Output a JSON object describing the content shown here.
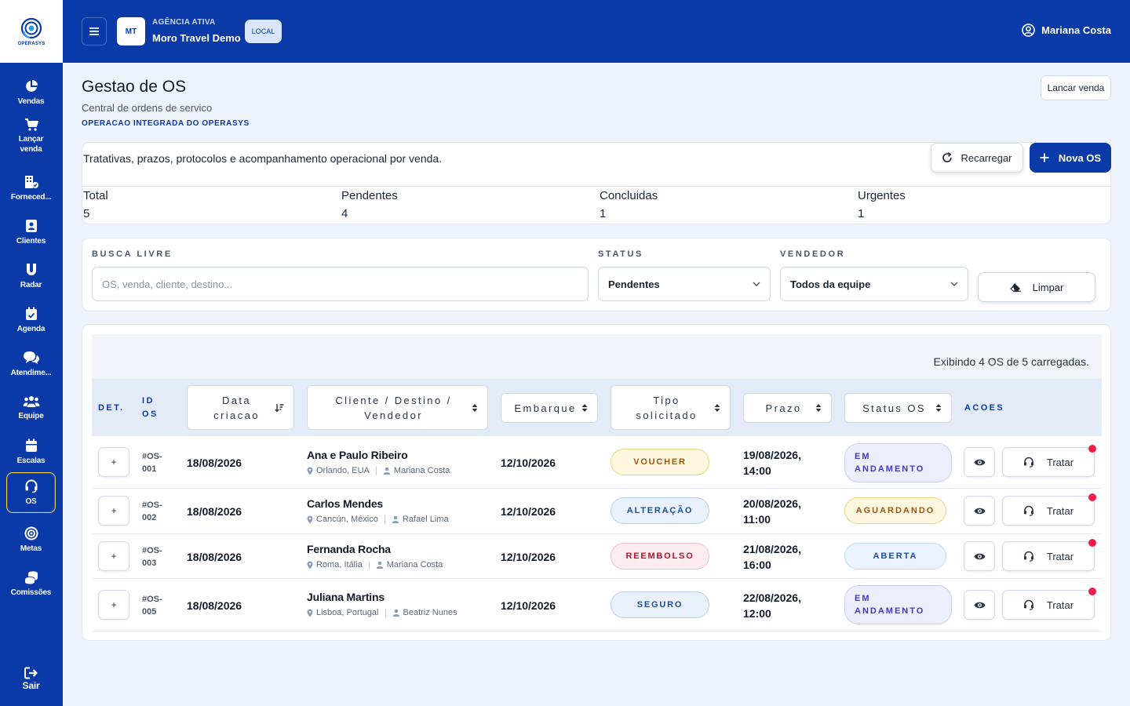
{
  "app": {
    "logo_text": "OPERASYS"
  },
  "colors": {
    "primary": "#0a3aa7",
    "active_border": "#f2c94c",
    "alert_dot": "#ef1e4a"
  },
  "sidebar": {
    "items": [
      {
        "label": "Vendas",
        "icon": "pie-chart-icon"
      },
      {
        "label": "Lançar venda",
        "icon": "cart-icon"
      },
      {
        "label": "Forneced...",
        "icon": "building-icon"
      },
      {
        "label": "Clientes",
        "icon": "contacts-icon"
      },
      {
        "label": "Radar",
        "icon": "magnet-icon"
      },
      {
        "label": "Agenda",
        "icon": "calendar-check-icon"
      },
      {
        "label": "Atendime...",
        "icon": "chat-icon"
      },
      {
        "label": "Equipe",
        "icon": "team-icon"
      },
      {
        "label": "Escalas",
        "icon": "calendar-icon"
      },
      {
        "label": "OS",
        "icon": "headset-icon",
        "active": true
      },
      {
        "label": "Metas",
        "icon": "target-icon"
      },
      {
        "label": "Comissões",
        "icon": "coins-icon"
      }
    ],
    "logout_label": "Sair"
  },
  "topbar": {
    "agency_initials": "MT",
    "agency_kicker": "AGÊNCIA ATIVA",
    "agency_name": "Moro Travel Demo",
    "env_badge": "LOCAL",
    "user_name": "Mariana Costa"
  },
  "page": {
    "title": "Gestao de OS",
    "subtitle": "Central de ordens de servico",
    "kicker": "OPERACAO INTEGRADA DO OPERASYS",
    "lancar_label": "Lancar venda"
  },
  "summary": {
    "description": "Tratativas, prazos, protocolos e acompanhamento operacional por venda.",
    "reload_label": "Recarregar",
    "new_label": "Nova OS",
    "stats": [
      {
        "label": "Total",
        "value": "5"
      },
      {
        "label": "Pendentes",
        "value": "4"
      },
      {
        "label": "Concluidas",
        "value": "1"
      },
      {
        "label": "Urgentes",
        "value": "1"
      }
    ]
  },
  "filters": {
    "search_label": "BUSCA LIVRE",
    "search_placeholder": "OS, venda, cliente, destino...",
    "search_value": "",
    "status_label": "STATUS",
    "status_value": "Pendentes",
    "seller_label": "VENDEDOR",
    "seller_value": "Todos da equipe",
    "clear_label": "Limpar"
  },
  "table": {
    "info": "Exibindo 4 OS de 5 carregadas.",
    "headers": {
      "det": "DET.",
      "id_line1": "ID",
      "id_line2": "OS",
      "data_line1": "Data",
      "data_line2": "criacao",
      "cliente_line1": "Cliente / Destino /",
      "cliente_line2": "Vendedor",
      "embarque": "Embarque",
      "tipo_line1": "Tipo",
      "tipo_line2": "solicitado",
      "prazo": "Prazo",
      "status": "Status OS",
      "acoes": "ACOES"
    },
    "rows": [
      {
        "expand": "+",
        "id_line1": "#OS-",
        "id_line2": "001",
        "date": "18/08/2026",
        "client": "Ana e Paulo Ribeiro",
        "destination": "Orlando, EUA",
        "seller": "Mariana Costa",
        "embarque": "12/10/2026",
        "tipo": "VOUCHER",
        "prazo_line1": "19/08/2026,",
        "prazo_line2": "14:00",
        "status_line1": "EM",
        "status_line2": "ANDAMENTO",
        "action": "Tratar"
      },
      {
        "expand": "+",
        "id_line1": "#OS-",
        "id_line2": "002",
        "date": "18/08/2026",
        "client": "Carlos Mendes",
        "destination": "Cancún, México",
        "seller": "Rafael Lima",
        "embarque": "12/10/2026",
        "tipo": "ALTERAÇÃO",
        "prazo_line1": "20/08/2026,",
        "prazo_line2": "11:00",
        "status_line1": "AGUARDANDO",
        "status_line2": "",
        "action": "Tratar"
      },
      {
        "expand": "+",
        "id_line1": "#OS-",
        "id_line2": "003",
        "date": "18/08/2026",
        "client": "Fernanda Rocha",
        "destination": "Roma, Itália",
        "seller": "Mariana Costa",
        "embarque": "12/10/2026",
        "tipo": "REEMBOLSO",
        "prazo_line1": "21/08/2026,",
        "prazo_line2": "16:00",
        "status_line1": "ABERTA",
        "status_line2": "",
        "action": "Tratar"
      },
      {
        "expand": "+",
        "id_line1": "#OS-",
        "id_line2": "005",
        "date": "18/08/2026",
        "client": "Juliana Martins",
        "destination": "Lisboa, Portugal",
        "seller": "Beatriz Nunes",
        "embarque": "12/10/2026",
        "tipo": "SEGURO",
        "prazo_line1": "22/08/2026,",
        "prazo_line2": "12:00",
        "status_line1": "EM",
        "status_line2": "ANDAMENTO",
        "action": "Tratar"
      }
    ]
  }
}
